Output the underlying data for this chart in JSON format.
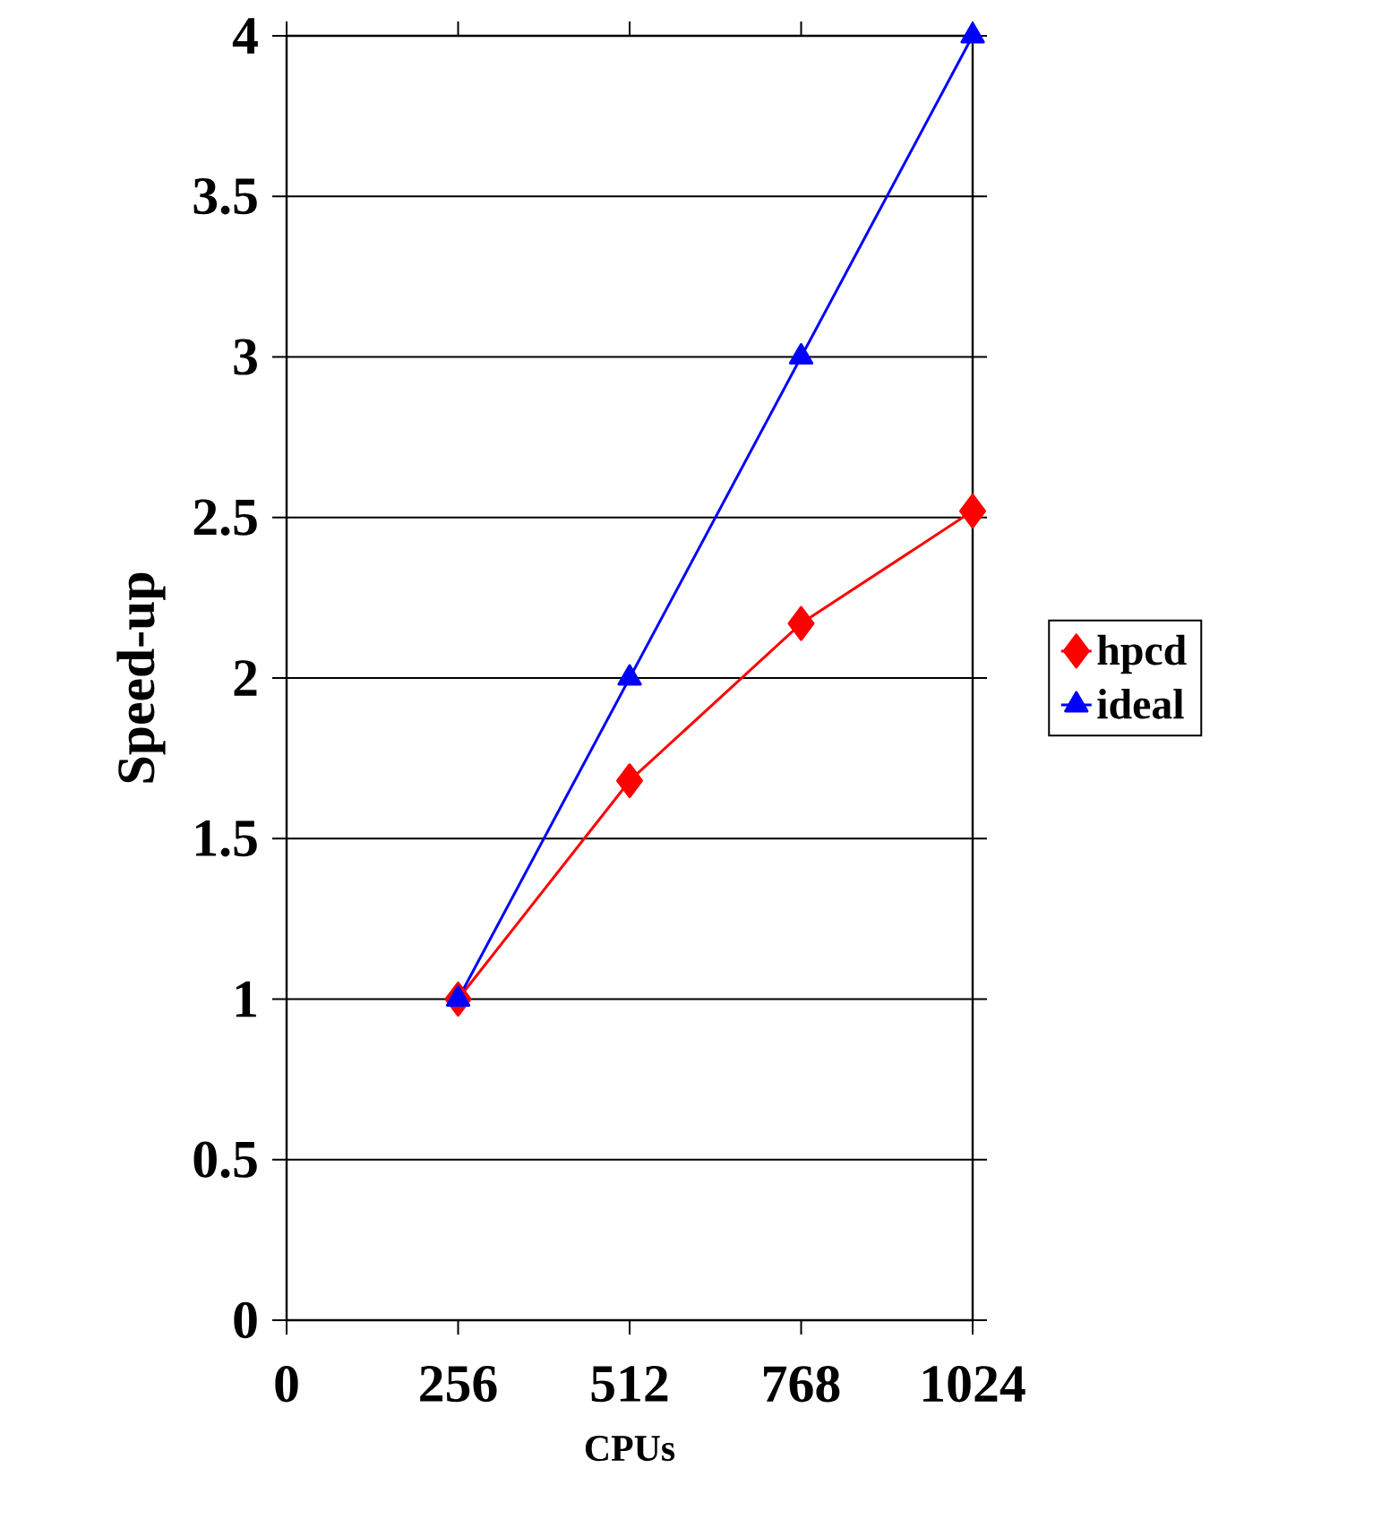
{
  "chart_data": {
    "type": "line",
    "xlabel": "CPUs",
    "ylabel": "Speed-up",
    "x": [
      256,
      512,
      768,
      1024
    ],
    "series": [
      {
        "name": "hpcd",
        "color": "#ff0000",
        "marker": "diamond",
        "values": [
          1,
          1.68,
          2.17,
          2.52
        ]
      },
      {
        "name": "ideal",
        "color": "#0000ff",
        "marker": "triangle",
        "values": [
          1,
          2,
          3,
          4
        ]
      }
    ],
    "xlim": [
      0,
      1024
    ],
    "xticks": [
      0,
      256,
      512,
      768,
      1024
    ],
    "ylim": [
      0,
      4
    ],
    "yticks": [
      0,
      0.5,
      1,
      1.5,
      2,
      2.5,
      3,
      3.5,
      4
    ],
    "grid": "y",
    "legend": "right",
    "line_style": "solid"
  }
}
